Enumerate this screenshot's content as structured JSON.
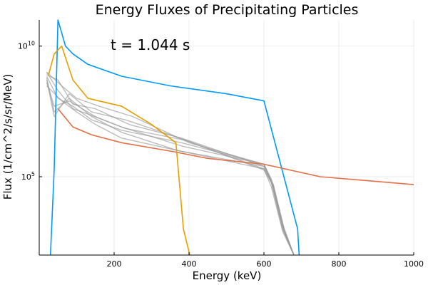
{
  "chart_data": {
    "type": "line",
    "title": "Energy Fluxes of Precipitating Particles",
    "xlabel": "Energy (keV)",
    "ylabel": "Flux (1/cm^2/s/sr/MeV)",
    "annotation": "t = 1.044 s",
    "xlim": [
      0,
      1000
    ],
    "ylim_log10": [
      2,
      11
    ],
    "yscale": "log10",
    "grid": true,
    "legend": "none",
    "x_ticks": [
      {
        "value": 200,
        "label": "200"
      },
      {
        "value": 400,
        "label": "400"
      },
      {
        "value": 600,
        "label": "600"
      },
      {
        "value": 800,
        "label": "800"
      },
      {
        "value": 1000,
        "label": "1000"
      }
    ],
    "y_ticks": [
      {
        "value": 100000,
        "base": "10",
        "exp": "5"
      },
      {
        "value": 10000000000,
        "base": "10",
        "exp": "10"
      }
    ],
    "series": [
      {
        "color": "#009AFA",
        "x": [
          30,
          40,
          50,
          70,
          90,
          130,
          220,
          350,
          500,
          600,
          690,
          694
        ],
        "y": [
          100,
          200000,
          100000000000,
          10000000000,
          5000000000,
          2000000000,
          700000000,
          300000000,
          150000000,
          80000000,
          1000,
          100
        ]
      },
      {
        "color": "#E36F47",
        "x": [
          50,
          90,
          140,
          220,
          360,
          450,
          600,
          750,
          1000
        ],
        "y": [
          40000000,
          8000000,
          4000000,
          2000000,
          900000,
          500000,
          300000,
          100000,
          50000
        ]
      },
      {
        "color": "#E69F00",
        "x": [
          25,
          40,
          60,
          90,
          130,
          220,
          300,
          365,
          385,
          402
        ],
        "y": [
          800000000,
          5000000000,
          10000000000,
          500000000,
          100000000,
          50000000,
          10000000,
          2000000,
          1000,
          100
        ]
      },
      {
        "color": "#999999",
        "x": [
          20,
          60,
          100,
          160,
          250,
          400,
          600,
          620,
          650,
          680
        ],
        "y": [
          1000000000,
          300000000,
          100000000,
          50000000,
          20000000,
          2000000,
          300000,
          60000,
          1000,
          100
        ]
      },
      {
        "color": "#999999",
        "x": [
          20,
          50,
          90,
          150,
          240,
          380,
          600,
          625,
          655,
          680
        ],
        "y": [
          800000000,
          500000000,
          60000000,
          40000000,
          10000000,
          3000000,
          250000,
          50000,
          700,
          100
        ]
      },
      {
        "color": "#999999",
        "x": [
          20,
          40,
          80,
          140,
          220,
          370,
          600,
          620,
          650,
          680
        ],
        "y": [
          600000000,
          30000000,
          100000000,
          20000000,
          5000000,
          1000000,
          200000,
          40000,
          800,
          100
        ]
      },
      {
        "color": "#999999",
        "x": [
          20,
          50,
          90,
          130,
          220,
          380,
          600,
          620,
          650,
          680
        ],
        "y": [
          1000000000,
          200000000,
          40000000,
          25000000,
          8000000,
          1500000,
          300000,
          70000,
          1200,
          100
        ]
      },
      {
        "color": "#999999",
        "x": [
          20,
          40,
          80,
          140,
          230,
          350,
          600,
          625,
          655,
          680
        ],
        "y": [
          500000000,
          20000000,
          150000000,
          30000000,
          15000000,
          4000000,
          200000,
          50000,
          900,
          100
        ]
      },
      {
        "color": "#999999",
        "x": [
          20,
          60,
          100,
          150,
          220,
          370,
          600,
          620,
          650,
          680
        ],
        "y": [
          300000000,
          80000000,
          30000000,
          10000000,
          3000000,
          1000000,
          250000,
          60000,
          1000,
          100
        ]
      },
      {
        "color": "#999999",
        "x": [
          20,
          50,
          90,
          140,
          220,
          380,
          600,
          620,
          650,
          680
        ],
        "y": [
          700000000,
          100000000,
          50000000,
          15000000,
          6000000,
          2000000,
          300000,
          80000,
          1500,
          100
        ]
      },
      {
        "color": "#999999",
        "x": [
          20,
          40,
          80,
          150,
          230,
          390,
          600,
          625,
          655,
          680
        ],
        "y": [
          400000000,
          50000000,
          80000000,
          20000000,
          7000000,
          2500000,
          180000,
          45000,
          800,
          100
        ]
      }
    ]
  }
}
